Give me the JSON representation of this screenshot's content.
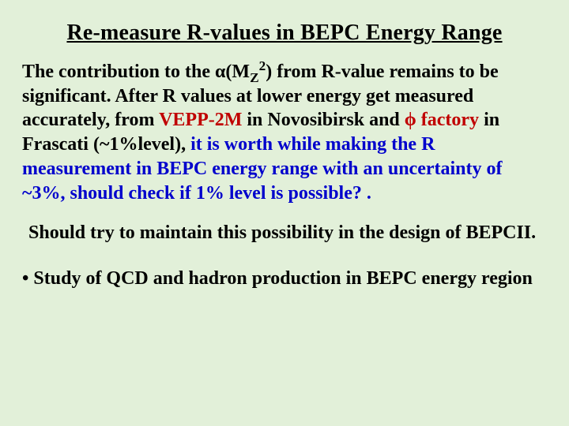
{
  "title": "Re-measure R-values in BEPC Energy Range",
  "p1": {
    "s1a": "The contribution to the ",
    "alpha": "α",
    "s1b": "(M",
    "sub": "Z",
    "sup": "2",
    "s1c": ") from R-value remains to be significant. After R values at lower energy get measured accurately, from ",
    "vepp": "VEPP-2M",
    "s2": " in Novosibirsk and ",
    "phi": "ϕ",
    "s3": " factory",
    "s4": " in Frascati (~1%level), ",
    "blue": "it is worth while making the R measurement in BEPC energy range with an uncertainty of ~3%, should check if 1% level is possible? ."
  },
  "p2": "Should try to maintain this possibility in the design of BEPCII.",
  "bullet": "• Study of QCD and hadron production in BEPC energy region",
  "colors": {
    "background": "#e2f0d9",
    "black": "#000000",
    "red": "#c00000",
    "blue": "#0000cc"
  },
  "fontsize": {
    "title": 28,
    "body": 24
  }
}
